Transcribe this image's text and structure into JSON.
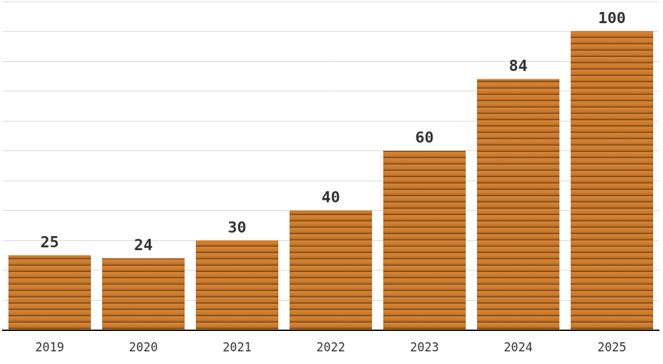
{
  "chart_data": {
    "type": "bar",
    "categories": [
      "2019",
      "2020",
      "2021",
      "2022",
      "2023",
      "2024",
      "2025"
    ],
    "values": [
      25,
      24,
      30,
      40,
      60,
      84,
      100
    ],
    "color": "#c97a2e",
    "ylim": [
      0,
      110
    ],
    "yticks": [
      0,
      10,
      20,
      30,
      40,
      50,
      60,
      70,
      80,
      90,
      100,
      110
    ],
    "grid": true,
    "data_labels": true,
    "tick_labels": "x"
  }
}
